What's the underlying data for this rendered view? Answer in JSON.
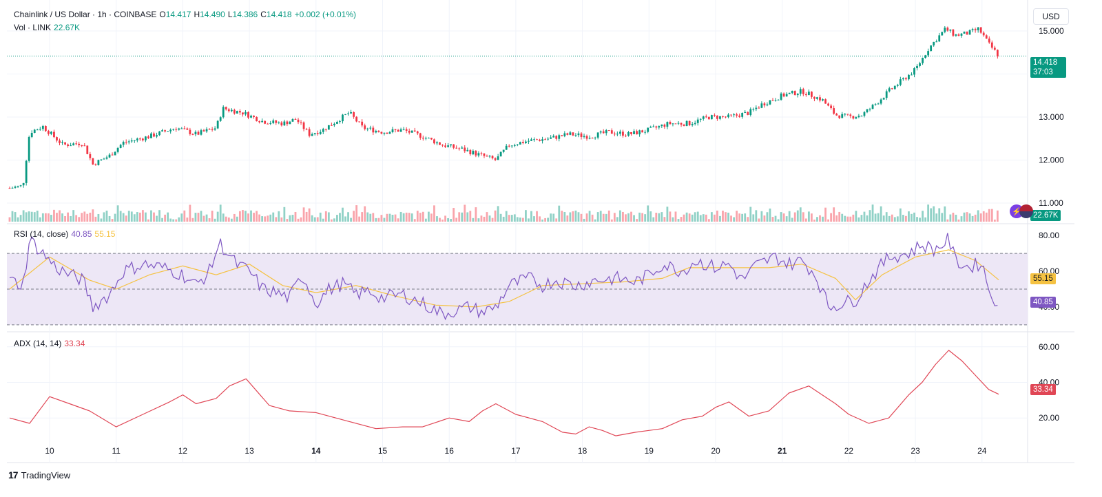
{
  "header": {
    "symbol": "Chainlink / US Dollar · 1h · COINBASE",
    "o_label": "O",
    "o": "14.417",
    "h_label": "H",
    "h": "14.490",
    "l_label": "L",
    "l": "14.386",
    "c_label": "C",
    "c": "14.418",
    "change": "+0.002 (+0.01%)",
    "vol_label": "Vol · LINK",
    "vol": "22.67K",
    "currency": "USD"
  },
  "price_tag": {
    "value": "14.418",
    "countdown": "37:03"
  },
  "volume_tag": "22.67K",
  "rsi": {
    "label": "RSI (14, close)",
    "value": "40.85",
    "ma_value": "55.15"
  },
  "adx": {
    "label": "ADX (14, 14)",
    "value": "33.34"
  },
  "brand": "TradingView",
  "icons": {
    "lightning": "lightning-icon",
    "flag": "us-flag-icon",
    "logo": "tradingview-logo-icon"
  },
  "colors": {
    "up": "#089981",
    "down": "#f23645",
    "rsi": "#7e57c2",
    "rsi_ma": "#f5c242",
    "adx": "#e04655",
    "rsi_band": "#ede7f6"
  },
  "chart_data": [
    {
      "type": "candlestick",
      "x_ticks": [
        "10",
        "11",
        "12",
        "13",
        "14",
        "15",
        "16",
        "17",
        "18",
        "19",
        "20",
        "21",
        "22",
        "23",
        "24"
      ],
      "y_ticks": [
        "11.000",
        "12.000",
        "13.000",
        "14.000",
        "15.000"
      ],
      "ylim": [
        10.6,
        15.4
      ],
      "close_path": [
        {
          "x": 9.4,
          "y": 11.35
        },
        {
          "x": 9.6,
          "y": 11.4
        },
        {
          "x": 9.7,
          "y": 12.65
        },
        {
          "x": 9.9,
          "y": 12.78
        },
        {
          "x": 10.2,
          "y": 12.35
        },
        {
          "x": 10.5,
          "y": 12.4
        },
        {
          "x": 10.65,
          "y": 11.9
        },
        {
          "x": 10.9,
          "y": 12.1
        },
        {
          "x": 11.1,
          "y": 12.4
        },
        {
          "x": 11.5,
          "y": 12.55
        },
        {
          "x": 11.9,
          "y": 12.75
        },
        {
          "x": 12.2,
          "y": 12.6
        },
        {
          "x": 12.5,
          "y": 12.75
        },
        {
          "x": 12.6,
          "y": 13.2
        },
        {
          "x": 12.9,
          "y": 13.1
        },
        {
          "x": 13.2,
          "y": 12.9
        },
        {
          "x": 13.5,
          "y": 12.85
        },
        {
          "x": 13.7,
          "y": 12.95
        },
        {
          "x": 13.9,
          "y": 12.6
        },
        {
          "x": 14.1,
          "y": 12.7
        },
        {
          "x": 14.3,
          "y": 12.9
        },
        {
          "x": 14.5,
          "y": 13.1
        },
        {
          "x": 14.7,
          "y": 12.75
        },
        {
          "x": 15.0,
          "y": 12.65
        },
        {
          "x": 15.3,
          "y": 12.7
        },
        {
          "x": 15.6,
          "y": 12.55
        },
        {
          "x": 15.9,
          "y": 12.35
        },
        {
          "x": 16.2,
          "y": 12.25
        },
        {
          "x": 16.5,
          "y": 12.1
        },
        {
          "x": 16.7,
          "y": 12.0
        },
        {
          "x": 16.9,
          "y": 12.35
        },
        {
          "x": 17.2,
          "y": 12.45
        },
        {
          "x": 17.5,
          "y": 12.5
        },
        {
          "x": 17.8,
          "y": 12.6
        },
        {
          "x": 18.1,
          "y": 12.55
        },
        {
          "x": 18.4,
          "y": 12.65
        },
        {
          "x": 18.7,
          "y": 12.6
        },
        {
          "x": 19.0,
          "y": 12.7
        },
        {
          "x": 19.3,
          "y": 12.85
        },
        {
          "x": 19.6,
          "y": 12.85
        },
        {
          "x": 19.9,
          "y": 13.0
        },
        {
          "x": 20.2,
          "y": 13.0
        },
        {
          "x": 20.5,
          "y": 13.1
        },
        {
          "x": 20.7,
          "y": 13.3
        },
        {
          "x": 21.0,
          "y": 13.5
        },
        {
          "x": 21.3,
          "y": 13.6
        },
        {
          "x": 21.6,
          "y": 13.4
        },
        {
          "x": 21.8,
          "y": 13.05
        },
        {
          "x": 22.0,
          "y": 13.0
        },
        {
          "x": 22.2,
          "y": 13.05
        },
        {
          "x": 22.4,
          "y": 13.3
        },
        {
          "x": 22.6,
          "y": 13.6
        },
        {
          "x": 22.8,
          "y": 13.85
        },
        {
          "x": 23.0,
          "y": 14.1
        },
        {
          "x": 23.2,
          "y": 14.6
        },
        {
          "x": 23.45,
          "y": 15.05
        },
        {
          "x": 23.6,
          "y": 14.9
        },
        {
          "x": 23.8,
          "y": 14.95
        },
        {
          "x": 23.95,
          "y": 15.05
        },
        {
          "x": 24.1,
          "y": 14.7
        },
        {
          "x": 24.25,
          "y": 14.42
        }
      ]
    },
    {
      "type": "line",
      "name": "RSI (14, close)",
      "y_ticks": [
        "40.00",
        "60.00",
        "80.00"
      ],
      "ylim": [
        28,
        82
      ],
      "bands": [
        30,
        50,
        70
      ],
      "values": [
        {
          "x": 9.4,
          "y": 55
        },
        {
          "x": 9.6,
          "y": 52
        },
        {
          "x": 9.7,
          "y": 78
        },
        {
          "x": 9.9,
          "y": 70
        },
        {
          "x": 10.1,
          "y": 62
        },
        {
          "x": 10.3,
          "y": 58
        },
        {
          "x": 10.5,
          "y": 55
        },
        {
          "x": 10.65,
          "y": 40
        },
        {
          "x": 10.9,
          "y": 47
        },
        {
          "x": 11.1,
          "y": 60
        },
        {
          "x": 11.4,
          "y": 64
        },
        {
          "x": 11.7,
          "y": 62
        },
        {
          "x": 12.0,
          "y": 58
        },
        {
          "x": 12.2,
          "y": 52
        },
        {
          "x": 12.4,
          "y": 60
        },
        {
          "x": 12.55,
          "y": 76
        },
        {
          "x": 12.8,
          "y": 64
        },
        {
          "x": 13.0,
          "y": 60
        },
        {
          "x": 13.2,
          "y": 50
        },
        {
          "x": 13.4,
          "y": 48
        },
        {
          "x": 13.6,
          "y": 45
        },
        {
          "x": 13.8,
          "y": 58
        },
        {
          "x": 14.0,
          "y": 42
        },
        {
          "x": 14.2,
          "y": 50
        },
        {
          "x": 14.4,
          "y": 53
        },
        {
          "x": 14.6,
          "y": 47
        },
        {
          "x": 14.8,
          "y": 49
        },
        {
          "x": 15.0,
          "y": 45
        },
        {
          "x": 15.3,
          "y": 47
        },
        {
          "x": 15.6,
          "y": 42
        },
        {
          "x": 15.9,
          "y": 36
        },
        {
          "x": 16.1,
          "y": 38
        },
        {
          "x": 16.3,
          "y": 40
        },
        {
          "x": 16.5,
          "y": 37
        },
        {
          "x": 16.7,
          "y": 40
        },
        {
          "x": 16.9,
          "y": 52
        },
        {
          "x": 17.2,
          "y": 56
        },
        {
          "x": 17.4,
          "y": 52
        },
        {
          "x": 17.6,
          "y": 55
        },
        {
          "x": 17.9,
          "y": 52
        },
        {
          "x": 18.2,
          "y": 55
        },
        {
          "x": 18.5,
          "y": 56
        },
        {
          "x": 18.8,
          "y": 54
        },
        {
          "x": 19.0,
          "y": 58
        },
        {
          "x": 19.2,
          "y": 64
        },
        {
          "x": 19.5,
          "y": 60
        },
        {
          "x": 19.7,
          "y": 66
        },
        {
          "x": 20.0,
          "y": 62
        },
        {
          "x": 20.2,
          "y": 64
        },
        {
          "x": 20.4,
          "y": 55
        },
        {
          "x": 20.6,
          "y": 63
        },
        {
          "x": 20.9,
          "y": 68
        },
        {
          "x": 21.1,
          "y": 64
        },
        {
          "x": 21.3,
          "y": 66
        },
        {
          "x": 21.5,
          "y": 58
        },
        {
          "x": 21.7,
          "y": 40
        },
        {
          "x": 21.9,
          "y": 42
        },
        {
          "x": 22.1,
          "y": 44
        },
        {
          "x": 22.3,
          "y": 55
        },
        {
          "x": 22.6,
          "y": 68
        },
        {
          "x": 22.9,
          "y": 70
        },
        {
          "x": 23.1,
          "y": 75
        },
        {
          "x": 23.3,
          "y": 72
        },
        {
          "x": 23.5,
          "y": 78
        },
        {
          "x": 23.6,
          "y": 66
        },
        {
          "x": 23.8,
          "y": 62
        },
        {
          "x": 24.0,
          "y": 65
        },
        {
          "x": 24.1,
          "y": 50
        },
        {
          "x": 24.25,
          "y": 40.85
        }
      ],
      "ma_values": [
        {
          "x": 9.4,
          "y": 50
        },
        {
          "x": 10.0,
          "y": 68
        },
        {
          "x": 10.6,
          "y": 55
        },
        {
          "x": 11.0,
          "y": 50
        },
        {
          "x": 11.5,
          "y": 58
        },
        {
          "x": 12.0,
          "y": 63
        },
        {
          "x": 12.5,
          "y": 58
        },
        {
          "x": 13.0,
          "y": 64
        },
        {
          "x": 13.5,
          "y": 52
        },
        {
          "x": 14.0,
          "y": 48
        },
        {
          "x": 14.6,
          "y": 52
        },
        {
          "x": 15.2,
          "y": 46
        },
        {
          "x": 15.8,
          "y": 41
        },
        {
          "x": 16.4,
          "y": 40
        },
        {
          "x": 16.9,
          "y": 43
        },
        {
          "x": 17.4,
          "y": 52
        },
        {
          "x": 18.0,
          "y": 53
        },
        {
          "x": 18.6,
          "y": 54
        },
        {
          "x": 19.2,
          "y": 56
        },
        {
          "x": 19.6,
          "y": 62
        },
        {
          "x": 20.2,
          "y": 62
        },
        {
          "x": 20.8,
          "y": 62
        },
        {
          "x": 21.3,
          "y": 64
        },
        {
          "x": 21.8,
          "y": 56
        },
        {
          "x": 22.1,
          "y": 44
        },
        {
          "x": 22.5,
          "y": 58
        },
        {
          "x": 23.0,
          "y": 68
        },
        {
          "x": 23.5,
          "y": 72
        },
        {
          "x": 23.9,
          "y": 66
        },
        {
          "x": 24.25,
          "y": 55.15
        }
      ]
    },
    {
      "type": "line",
      "name": "ADX (14, 14)",
      "y_ticks": [
        "20.00",
        "40.00",
        "60.00"
      ],
      "ylim": [
        5,
        63
      ],
      "values": [
        {
          "x": 9.4,
          "y": 20
        },
        {
          "x": 9.7,
          "y": 17
        },
        {
          "x": 10.0,
          "y": 32
        },
        {
          "x": 10.3,
          "y": 28
        },
        {
          "x": 10.6,
          "y": 24
        },
        {
          "x": 11.0,
          "y": 15
        },
        {
          "x": 11.4,
          "y": 22
        },
        {
          "x": 11.8,
          "y": 29
        },
        {
          "x": 12.0,
          "y": 33
        },
        {
          "x": 12.2,
          "y": 28
        },
        {
          "x": 12.5,
          "y": 31
        },
        {
          "x": 12.7,
          "y": 38
        },
        {
          "x": 12.95,
          "y": 42
        },
        {
          "x": 13.3,
          "y": 27
        },
        {
          "x": 13.6,
          "y": 24
        },
        {
          "x": 14.0,
          "y": 23
        },
        {
          "x": 14.5,
          "y": 18
        },
        {
          "x": 14.9,
          "y": 14
        },
        {
          "x": 15.3,
          "y": 15
        },
        {
          "x": 15.6,
          "y": 15
        },
        {
          "x": 16.0,
          "y": 20
        },
        {
          "x": 16.3,
          "y": 18
        },
        {
          "x": 16.5,
          "y": 24
        },
        {
          "x": 16.7,
          "y": 28
        },
        {
          "x": 17.0,
          "y": 22
        },
        {
          "x": 17.4,
          "y": 18
        },
        {
          "x": 17.7,
          "y": 12
        },
        {
          "x": 17.9,
          "y": 11
        },
        {
          "x": 18.1,
          "y": 15
        },
        {
          "x": 18.3,
          "y": 13
        },
        {
          "x": 18.5,
          "y": 10
        },
        {
          "x": 18.8,
          "y": 12
        },
        {
          "x": 19.0,
          "y": 13
        },
        {
          "x": 19.2,
          "y": 14
        },
        {
          "x": 19.5,
          "y": 19
        },
        {
          "x": 19.8,
          "y": 21
        },
        {
          "x": 20.0,
          "y": 26
        },
        {
          "x": 20.2,
          "y": 29
        },
        {
          "x": 20.5,
          "y": 21
        },
        {
          "x": 20.8,
          "y": 24
        },
        {
          "x": 21.1,
          "y": 34
        },
        {
          "x": 21.4,
          "y": 38
        },
        {
          "x": 21.6,
          "y": 33
        },
        {
          "x": 21.8,
          "y": 28
        },
        {
          "x": 22.0,
          "y": 22
        },
        {
          "x": 22.3,
          "y": 17
        },
        {
          "x": 22.6,
          "y": 20
        },
        {
          "x": 22.9,
          "y": 33
        },
        {
          "x": 23.1,
          "y": 40
        },
        {
          "x": 23.3,
          "y": 50
        },
        {
          "x": 23.5,
          "y": 58
        },
        {
          "x": 23.7,
          "y": 52
        },
        {
          "x": 23.9,
          "y": 44
        },
        {
          "x": 24.1,
          "y": 36
        },
        {
          "x": 24.25,
          "y": 33.34
        }
      ]
    }
  ]
}
